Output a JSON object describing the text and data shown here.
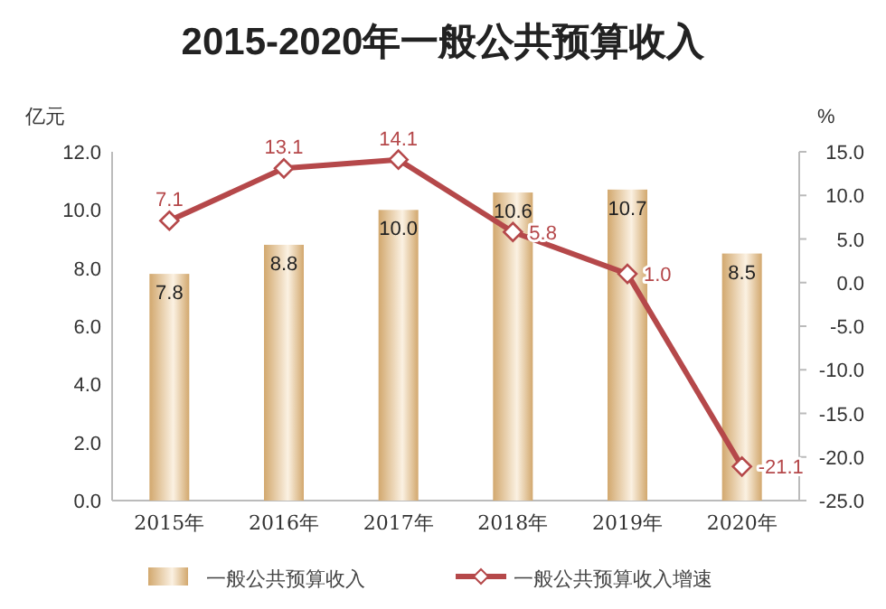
{
  "chart_data": {
    "type": "bar",
    "title": "2015-2020年一般公共预算收入",
    "ylabel": "亿元",
    "y2label": "%",
    "categories": [
      "2015年",
      "2016年",
      "2017年",
      "2018年",
      "2019年",
      "2020年"
    ],
    "series": [
      {
        "name": "一般公共预算收入",
        "color": "#d2a86e",
        "values": [
          7.8,
          8.8,
          10.0,
          10.6,
          10.7,
          8.5
        ],
        "value_labels": [
          "7.8",
          "8.8",
          "10.0",
          "10.6",
          "10.7",
          "8.5"
        ]
      },
      {
        "name": "一般公共预算收入增速",
        "type": "line",
        "axis": "y2",
        "color": "#b5484a",
        "marker": "diamond",
        "values": [
          7.1,
          13.1,
          14.1,
          5.8,
          1.0,
          -21.1
        ],
        "value_labels": [
          "7.1",
          "13.1",
          "14.1",
          "5.8",
          "1.0",
          "-21.1"
        ]
      }
    ],
    "ylim": [
      0,
      12
    ],
    "yticks": [
      {
        "value": 0,
        "label": "0.0"
      },
      {
        "value": 2,
        "label": "2.0"
      },
      {
        "value": 4,
        "label": "4.0"
      },
      {
        "value": 6,
        "label": "6.0"
      },
      {
        "value": 8,
        "label": "8.0"
      },
      {
        "value": 10,
        "label": "10.0"
      },
      {
        "value": 12,
        "label": "12.0"
      }
    ],
    "y2lim": [
      -25,
      15
    ],
    "y2ticks": [
      {
        "value": -25,
        "label": "-25.0"
      },
      {
        "value": -20,
        "label": "-20.0"
      },
      {
        "value": -15,
        "label": "-15.0"
      },
      {
        "value": -10,
        "label": "-10.0"
      },
      {
        "value": -5,
        "label": "-5.0"
      },
      {
        "value": 0,
        "label": "0.0"
      },
      {
        "value": 5,
        "label": "5.0"
      },
      {
        "value": 10,
        "label": "10.0"
      },
      {
        "value": 15,
        "label": "15.0"
      }
    ],
    "legend": "bottom",
    "grid": false
  }
}
